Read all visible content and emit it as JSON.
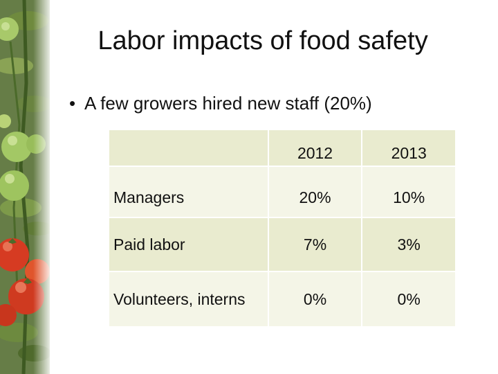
{
  "slide": {
    "title": "Labor impacts of food safety",
    "bullet": "A few growers hired new staff (20%)"
  },
  "table": {
    "columns": [
      "",
      "2012",
      "2013"
    ],
    "rows": [
      {
        "label": "Managers",
        "y2012": "20%",
        "y2013": "10%"
      },
      {
        "label": "Paid labor",
        "y2012": "7%",
        "y2013": "3%"
      },
      {
        "label": "Volunteers, interns",
        "y2012": "0%",
        "y2013": "0%"
      }
    ]
  },
  "colors": {
    "header_bg": "#e9ebcf",
    "row_light_bg": "#f4f5e7",
    "tomato_red": "#d63b22",
    "tomato_green": "#9cc25a",
    "leaf_green": "#4f6e2e"
  }
}
